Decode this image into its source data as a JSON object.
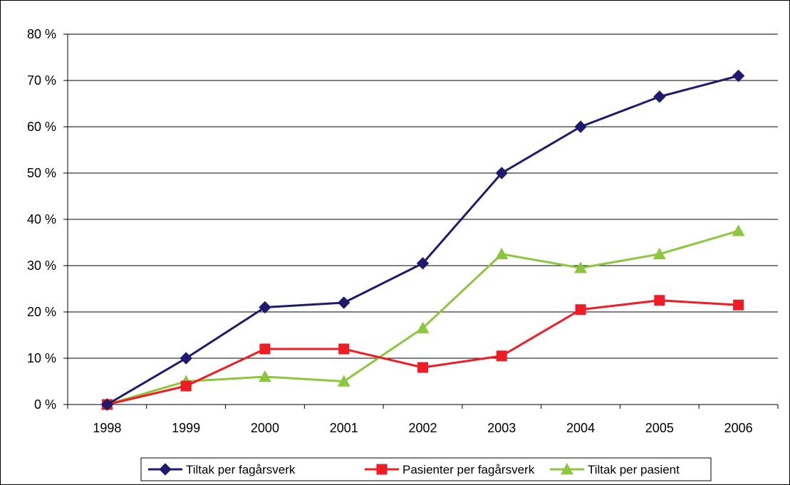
{
  "chart_data": {
    "type": "line",
    "title": "",
    "xlabel": "",
    "ylabel": "",
    "x": [
      "1998",
      "1999",
      "2000",
      "2001",
      "2002",
      "2003",
      "2004",
      "2005",
      "2006"
    ],
    "yticks": [
      "0 %",
      "10 %",
      "20 %",
      "30 %",
      "40 %",
      "50 %",
      "60 %",
      "70 %",
      "80 %"
    ],
    "ylim": [
      0,
      80
    ],
    "grid": true,
    "legend_position": "bottom",
    "series": [
      {
        "name": "Tiltak per fagårsverk",
        "color": "#1f1a6e",
        "marker": "diamond",
        "values": [
          0,
          10,
          21,
          22,
          30.5,
          50,
          60,
          66.5,
          71
        ]
      },
      {
        "name": "Pasienter per fagårsverk",
        "color": "#ee1c24",
        "marker": "square",
        "values": [
          0,
          4,
          12,
          12,
          8,
          10.5,
          20.5,
          22.5,
          21.5
        ]
      },
      {
        "name": "Tiltak per pasient",
        "color": "#8dc63f",
        "marker": "triangle",
        "values": [
          0,
          5,
          6,
          5,
          16.5,
          32.5,
          29.5,
          32.5,
          37.5
        ]
      }
    ]
  }
}
